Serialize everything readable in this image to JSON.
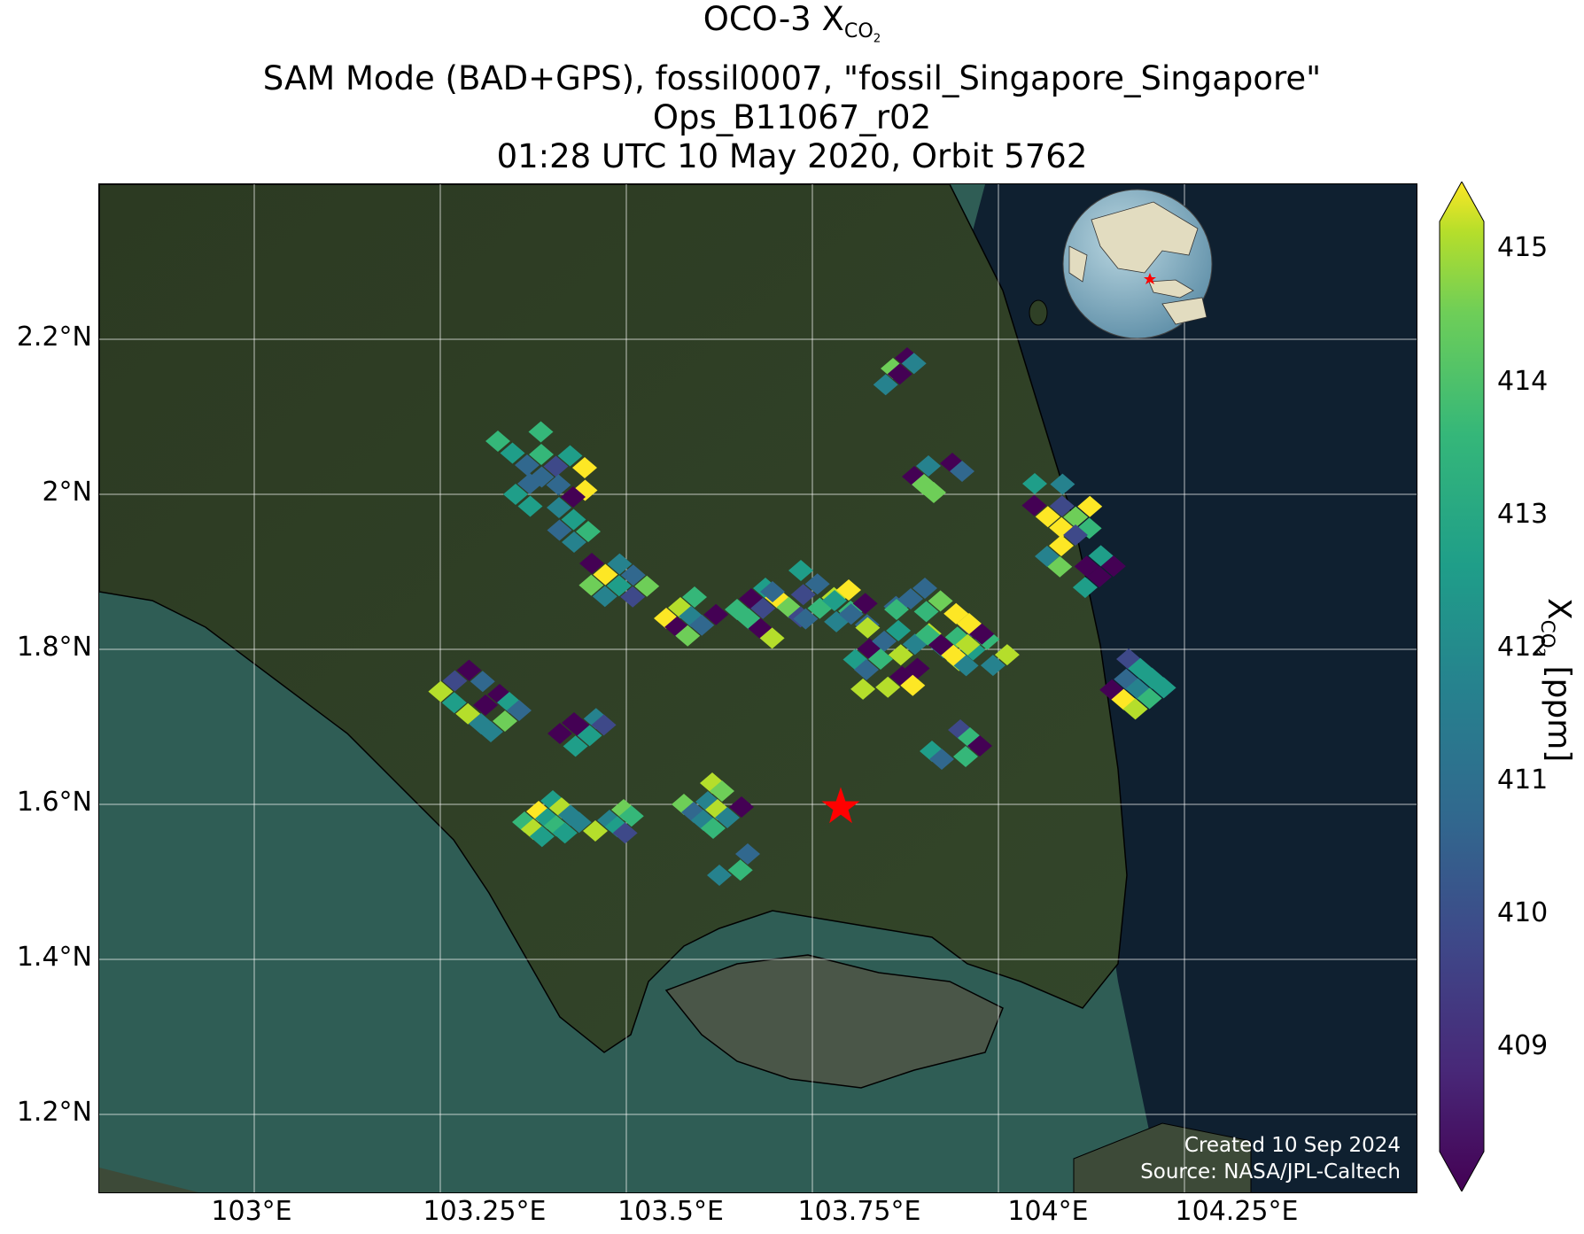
{
  "title": {
    "line1_main": "OCO-3 X",
    "line1_sub": "CO",
    "line1_sub2": "2",
    "line2": "SAM Mode (BAD+GPS), fossil0007, \"fossil_Singapore_Singapore\"",
    "line3": "Ops_B11067_r02",
    "line4": "01:28 UTC 10 May 2020, Orbit 5762"
  },
  "axes": {
    "lat_labels": [
      "2.2°N",
      "2°N",
      "1.8°N",
      "1.6°N",
      "1.4°N",
      "1.2°N"
    ],
    "lat_values": [
      2.2,
      2.0,
      1.8,
      1.6,
      1.4,
      1.2
    ],
    "lon_labels": [
      "103°E",
      "103.25°E",
      "103.5°E",
      "103.75°E",
      "104°E",
      "104.25°E"
    ],
    "lon_values": [
      103.0,
      103.25,
      103.5,
      103.75,
      104.0,
      104.25
    ],
    "lon_range": [
      102.91,
      103.62
    ],
    "lat_range": [
      1.1,
      2.4
    ]
  },
  "colorbar": {
    "label_main": "X",
    "label_sub": "CO",
    "label_sub2": "2",
    "label_unit": " [ppm]",
    "ticks": [
      "415",
      "414",
      "413",
      "412",
      "411",
      "410",
      "409"
    ],
    "tick_values": [
      415,
      414,
      413,
      412,
      411,
      410,
      409
    ],
    "range": [
      408.2,
      415.2
    ],
    "colormap": "viridis",
    "extend": "both"
  },
  "credits": {
    "line1": "Created 10 Sep 2024",
    "line2": "Source: NASA/JPL-Caltech"
  },
  "target": {
    "marker": "red-star",
    "color": "#ff0000"
  },
  "inset_globe": {
    "marker": "red-star"
  },
  "colors": {
    "land": "#2d3d22",
    "water": "#2b5a55",
    "open_sea": "#0e1f2e",
    "grid": "#ffffff"
  }
}
